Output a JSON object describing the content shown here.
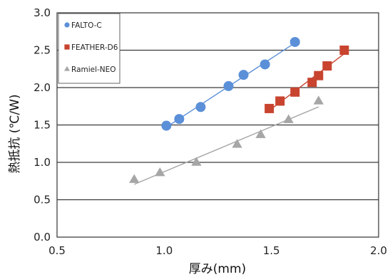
{
  "chart_data": {
    "type": "scatter",
    "title": "",
    "xlabel": "厚み(mm)",
    "ylabel": "熱抵抗 (℃/W)",
    "xlim": [
      0.5,
      2.0
    ],
    "ylim": [
      0.0,
      3.0
    ],
    "xticks": [
      "0.5",
      "1.0",
      "1.5",
      "2.0"
    ],
    "yticks": [
      "0.0",
      "0.5",
      "1.0",
      "1.5",
      "2.0",
      "2.5",
      "3.0"
    ],
    "grid": "horizontal",
    "legend_position": "top-left",
    "series": [
      {
        "name": "FALTO-C",
        "marker": "circle",
        "color": "#5b8fd8",
        "x": [
          1.01,
          1.07,
          1.17,
          1.3,
          1.37,
          1.47,
          1.61
        ],
        "y": [
          1.49,
          1.58,
          1.74,
          2.02,
          2.17,
          2.31,
          2.61
        ]
      },
      {
        "name": "FEATHER-D6",
        "marker": "square",
        "color": "#c8442f",
        "x": [
          1.49,
          1.54,
          1.61,
          1.69,
          1.72,
          1.76,
          1.84
        ],
        "y": [
          1.72,
          1.82,
          1.94,
          2.07,
          2.16,
          2.29,
          2.5
        ]
      },
      {
        "name": "Ramiel-NEO",
        "marker": "triangle",
        "color": "#a6a6a6",
        "x": [
          0.86,
          0.98,
          1.15,
          1.34,
          1.45,
          1.58,
          1.72
        ],
        "y": [
          0.77,
          0.86,
          1.0,
          1.24,
          1.37,
          1.57,
          1.82
        ]
      }
    ]
  }
}
